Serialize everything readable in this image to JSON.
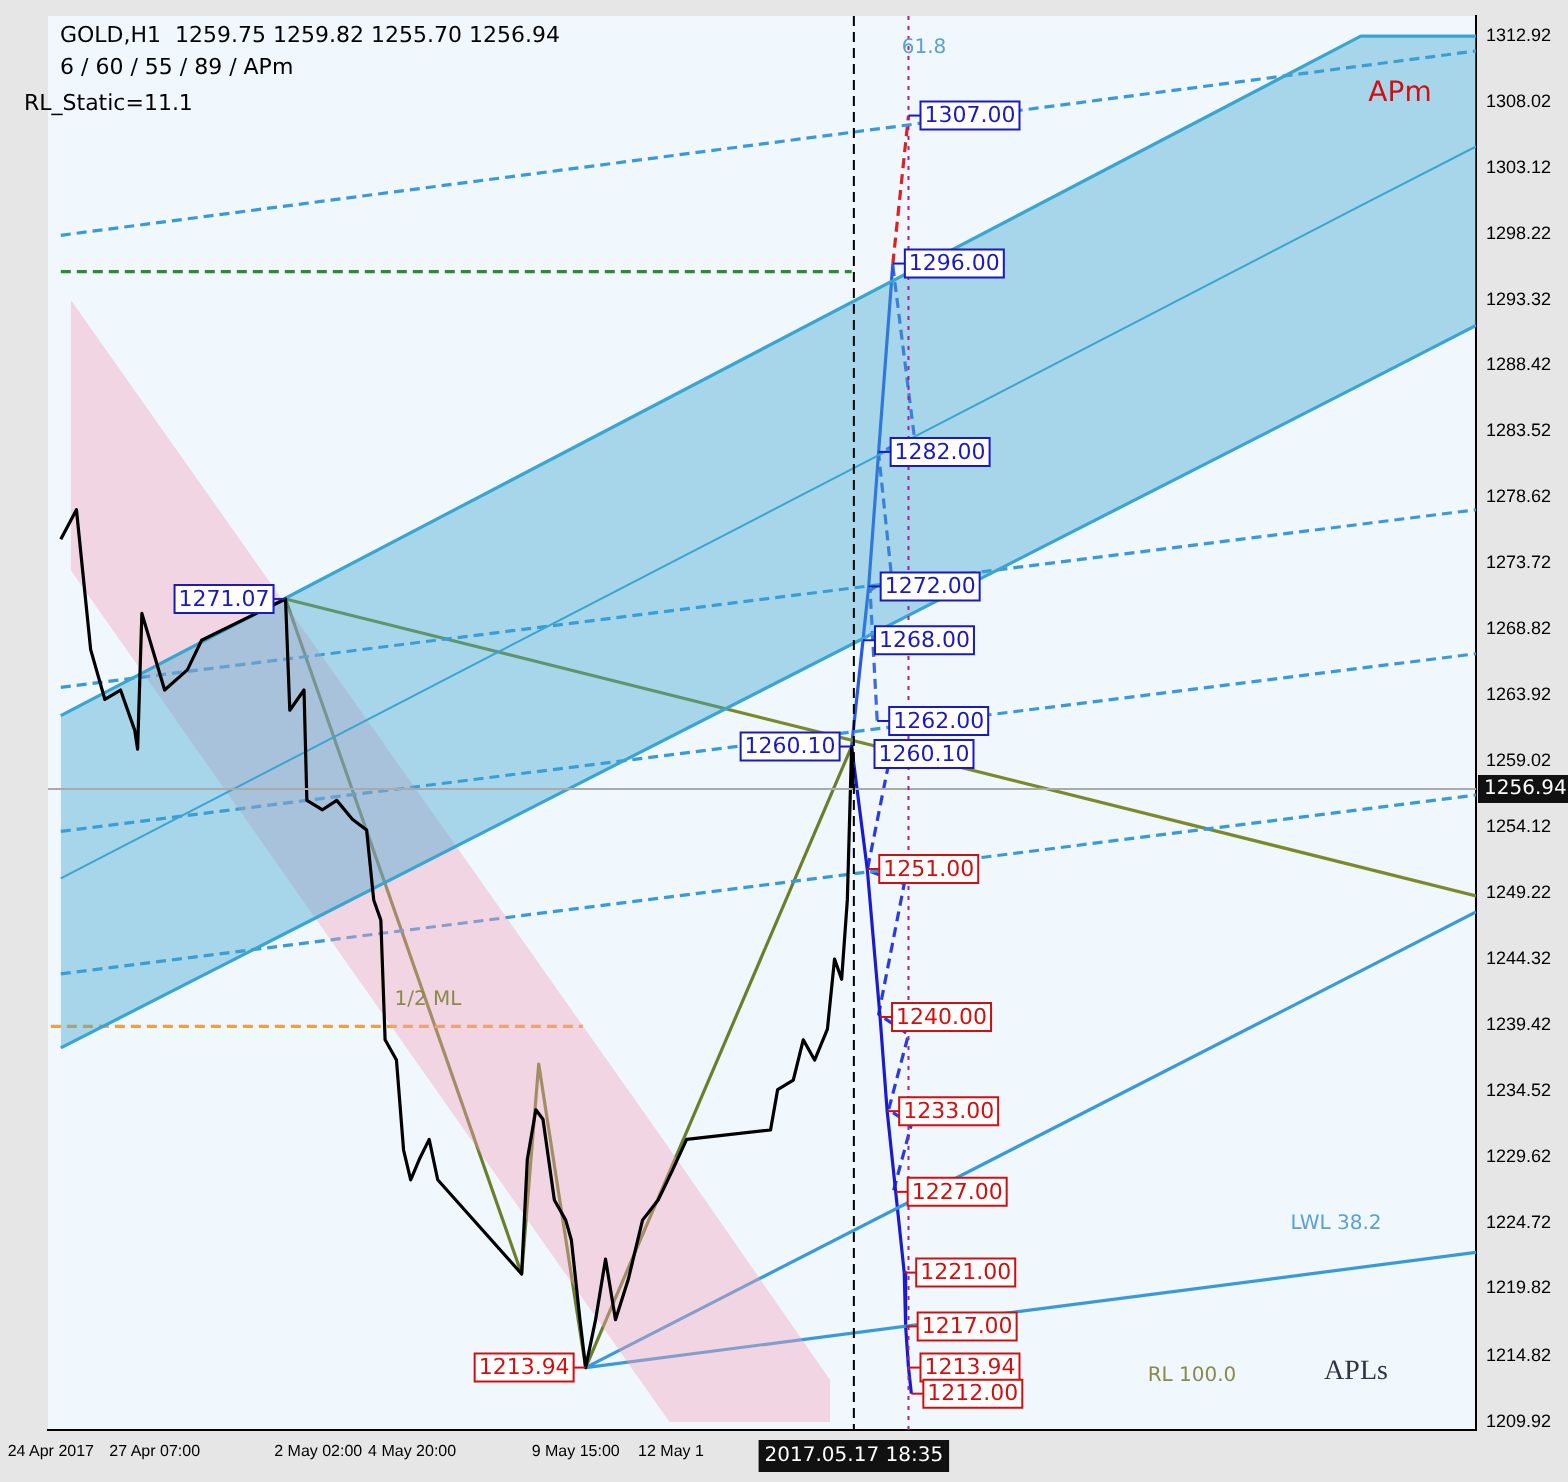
{
  "chart_data": {
    "type": "line",
    "title": "GOLD,H1  1259.75 1259.82 1255.70 1256.94",
    "subtitle": "6 / 60 / 55 / 89 / APm",
    "xlim": [
      "2017-04-24T04:00",
      "2017-06-05T00:00"
    ],
    "ylim": [
      1209.3,
      1314.4
    ],
    "xticks": [
      {
        "value": "2017-04-24T06:00",
        "label": "24 Apr 2017"
      },
      {
        "value": "2017-04-27T07:00",
        "label": "27 Apr 07:00"
      },
      {
        "value": "2017-05-02T02:00",
        "label": "2 May 02:00"
      },
      {
        "value": "2017-05-04T20:00",
        "label": "4 May 20:00"
      },
      {
        "value": "2017-05-09T15:00",
        "label": "9 May 15:00"
      },
      {
        "value": "2017-05-12T10:00",
        "label": "12 May 1"
      }
    ],
    "yticks": [
      1312.92,
      1308.02,
      1303.12,
      1298.22,
      1293.32,
      1288.42,
      1283.52,
      1278.62,
      1273.72,
      1268.82,
      1263.92,
      1259.02,
      1254.12,
      1249.22,
      1244.32,
      1239.42,
      1234.52,
      1229.62,
      1224.72,
      1219.82,
      1214.82,
      1209.92
    ],
    "grid": false,
    "legend": false,
    "marker": "none",
    "series": [
      {
        "color": "#000000",
        "x": [
          "2017-04-24T13:00",
          "2017-04-25T00:00",
          "2017-04-25T10:00",
          "2017-04-25T20:00",
          "2017-04-26T07:00",
          "2017-04-26T17:00",
          "2017-04-26T19:00",
          "2017-04-26T22:00",
          "2017-04-27T14:00",
          "2017-04-28T06:00",
          "2017-04-28T16:00",
          "2017-05-01T03:00",
          "2017-05-01T06:00",
          "2017-05-01T16:00",
          "2017-05-01T18:00",
          "2017-05-02T05:00",
          "2017-05-02T15:00",
          "2017-05-03T02:00",
          "2017-05-03T12:00",
          "2017-05-03T17:00",
          "2017-05-03T22:00",
          "2017-05-04T01:00",
          "2017-05-04T09:00",
          "2017-05-04T14:00",
          "2017-05-04T19:00",
          "2017-05-05T01:00",
          "2017-05-05T08:00",
          "2017-05-05T14:00",
          "2017-05-08T01:00",
          "2017-05-08T05:00",
          "2017-05-08T11:00",
          "2017-05-08T16:00",
          "2017-05-09T00:00",
          "2017-05-09T08:00",
          "2017-05-09T12:00",
          "2017-05-09T18:00",
          "2017-05-09T22:00",
          "2017-05-10T05:00",
          "2017-05-10T12:00",
          "2017-05-10T19:00",
          "2017-05-11T04:00",
          "2017-05-11T14:00",
          "2017-05-12T01:00",
          "2017-05-12T11:00",
          "2017-05-12T21:00",
          "2017-05-15T08:00",
          "2017-05-15T13:00",
          "2017-05-16T00:00",
          "2017-05-16T07:00",
          "2017-05-16T15:00",
          "2017-05-17T00:00",
          "2017-05-17T05:00",
          "2017-05-17T10:00",
          "2017-05-17T14:00",
          "2017-05-17T17:00",
          "2017-05-17T18:00"
        ],
        "values": [
          1275.5,
          1277.7,
          1267.3,
          1263.6,
          1264.3,
          1261.3,
          1259.9,
          1270.0,
          1264.3,
          1265.8,
          1268.0,
          1271.07,
          1262.8,
          1264.3,
          1256.1,
          1255.4,
          1256.1,
          1254.7,
          1253.9,
          1248.7,
          1247.2,
          1238.3,
          1236.8,
          1230.1,
          1227.9,
          1229.4,
          1230.9,
          1227.9,
          1220.9,
          1229.4,
          1233.1,
          1232.4,
          1226.4,
          1224.9,
          1223.4,
          1217.5,
          1213.94,
          1217.5,
          1222.0,
          1217.5,
          1220.5,
          1224.9,
          1226.4,
          1228.6,
          1230.9,
          1231.6,
          1234.6,
          1235.3,
          1238.3,
          1236.8,
          1239.1,
          1244.3,
          1242.8,
          1248.7,
          1260.1,
          1256.94
        ]
      },
      {
        "color": "#3aa6d0",
        "x": [
          "2017-04-24T13:00",
          "2017-06-01T15:00",
          "2017-06-05T00:00"
        ],
        "values": [
          1250.3,
          1300.3,
          1304.7
        ],
        "lower": [
          1237.7,
          1287.0,
          1291.4
        ],
        "upper": [
          1262.4,
          1312.9,
          1312.9
        ]
      },
      {
        "color": "#3aa6d0",
        "x": [
          "2017-04-24T13:00",
          "2017-06-01T15:00",
          "2017-06-05T00:00"
        ],
        "values": [
          1237.7,
          1287.0,
          1291.4
        ]
      },
      {
        "color": "#3aa6d0",
        "x": [
          "2017-04-24T13:00",
          "2017-06-01T15:00",
          "2017-06-05T00:00"
        ],
        "values": [
          1262.4,
          1312.9,
          1312.9
        ]
      },
      {
        "color": "#f4a3bb",
        "x": [
          "2017-04-24T20:00",
          "2017-05-12T09:00",
          "2017-05-17T02:00"
        ],
        "values": [
          null,
          null,
          null
        ],
        "lower": [
          1273.2,
          1209.9,
          1209.9
        ],
        "upper": [
          1293.3,
          1230.2,
          1213.0
        ]
      },
      {
        "color": "#3a9ad9",
        "line_style": "dashed",
        "x": [
          "2017-04-24T13:00",
          "2017-06-05T00:00"
        ],
        "values": [
          1298.1,
          1311.8
        ]
      },
      {
        "color": "#3a9ad9",
        "line_style": "dashed",
        "x": [
          "2017-04-24T13:00",
          "2017-06-05T00:00"
        ],
        "values": [
          1264.5,
          1277.7
        ]
      },
      {
        "color": "#3a9ad9",
        "line_style": "dashed",
        "x": [
          "2017-04-24T13:00",
          "2017-06-05T00:00"
        ],
        "values": [
          1253.8,
          1267.0
        ]
      },
      {
        "color": "#3a9ad9",
        "line_style": "dashed",
        "x": [
          "2017-04-24T13:00",
          "2017-06-05T00:00"
        ],
        "values": [
          1243.2,
          1256.5
        ]
      },
      {
        "color": "#3a9ad9",
        "x": [
          "2017-05-09T22:00",
          "2017-06-05T00:00"
        ],
        "values": [
          1213.94,
          1247.8
        ]
      },
      {
        "color": "#3a9ad9",
        "x": [
          "2017-05-09T22:00",
          "2017-06-05T00:00"
        ],
        "values": [
          1213.94,
          1222.5
        ]
      },
      {
        "color": "#2e8b2e",
        "line_style": "dashed",
        "x": [
          "2017-04-24T13:00",
          "2017-05-17T17:00"
        ],
        "values": [
          1295.4,
          1295.4
        ]
      },
      {
        "color": "#f0a040",
        "line_style": "dashed",
        "x": [
          "2017-04-24T06:00",
          "2017-05-09T20:00"
        ],
        "values": [
          1239.3,
          1239.3
        ]
      },
      {
        "color": "#7a8a2a",
        "x": [
          "2017-05-01T03:00",
          "2017-06-05T00:00"
        ],
        "values": [
          1271.07,
          1249.0
        ]
      },
      {
        "color": "#6b7f2a",
        "x": [
          "2017-05-01T03:00",
          "2017-05-08T01:00",
          "2017-05-08T13:00",
          "2017-05-09T22:00",
          "2017-05-17T17:00"
        ],
        "values": [
          1271.07,
          1220.9,
          1236.5,
          1213.94,
          1260.1
        ]
      },
      {
        "color": "#2a5ae0",
        "x": [
          "2017-05-17T17:00",
          "2017-05-18T01:00",
          "2017-05-18T05:00",
          "2017-05-18T12:00",
          "2017-05-18T22:00"
        ],
        "values": [
          1260.1,
          1268.0,
          1272.0,
          1282.0,
          1296.0
        ]
      },
      {
        "color": "#e02020",
        "line_style": "dashed",
        "x": [
          "2017-05-18T22:00",
          "2017-05-19T09:00"
        ],
        "values": [
          1296.0,
          1307.0
        ]
      },
      {
        "color": "#3a6ae0",
        "line_style": "dashed",
        "x": [
          "2017-05-18T22:00",
          "2017-05-19T13:00",
          "2017-05-18T12:00",
          "2017-05-18T21:00",
          "2017-05-18T06:00",
          "2017-05-18T11:00"
        ],
        "values": [
          1295.8,
          1283.2,
          1281.9,
          1272.8,
          1271.7,
          1262.0
        ]
      },
      {
        "color": "#1a1ad0",
        "x": [
          "2017-05-17T17:00",
          "2017-05-18T04:00",
          "2017-05-18T13:00",
          "2017-05-18T18:00",
          "2017-05-19T00:00",
          "2017-05-19T06:00",
          "2017-05-19T07:00",
          "2017-05-19T09:00",
          "2017-05-19T11:00"
        ],
        "values": [
          1260.1,
          1251.0,
          1240.0,
          1233.0,
          1227.0,
          1221.0,
          1217.0,
          1213.94,
          1212.0
        ]
      },
      {
        "color": "#2a3ae0",
        "line_style": "dashed",
        "x": [
          "2017-05-18T19:00",
          "2017-05-18T04:00",
          "2017-05-19T06:00",
          "2017-05-18T12:00",
          "2017-05-19T09:00",
          "2017-05-18T19:00",
          "2017-05-19T11:00",
          "2017-05-18T22:00"
        ],
        "values": [
          1258.8,
          1250.9,
          1249.9,
          1240.2,
          1238.7,
          1233.1,
          1232.0,
          1226.9
        ]
      }
    ],
    "ref_lines": [
      {
        "axis": "y",
        "value": 1256.94,
        "label": "1256.94",
        "color": "#aaaaaa",
        "line_style": "solid"
      },
      {
        "axis": "x",
        "value": "2017-05-17T18:35",
        "label": "2017.05.17 18:35",
        "color": "#000000",
        "line_style": "dashed"
      },
      {
        "axis": "x",
        "value": "2017-05-19T09:00",
        "label": null,
        "color": "#a020a0",
        "line_style": "dotted"
      }
    ],
    "annotations": [
      "RL_Static=11.1",
      "APm",
      "APLs",
      "1/2 ML",
      "LWL 38.2",
      "RL 100.0",
      "61.8",
      "1260.10",
      {
        "text": "1307.00",
        "x": "2017-05-19T09:00",
        "y": 1307.0
      },
      {
        "text": "1296.00",
        "x": "2017-05-18T22:00",
        "y": 1296.0
      },
      {
        "text": "1282.00",
        "x": "2017-05-18T12:00",
        "y": 1282.0
      },
      {
        "text": "1272.00",
        "x": "2017-05-18T05:00",
        "y": 1272.0
      },
      {
        "text": "1268.00",
        "x": "2017-05-18T01:00",
        "y": 1268.0
      },
      {
        "text": "1262.00",
        "x": "2017-05-18T11:00",
        "y": 1262.0
      },
      {
        "text": "1260.10",
        "x": "2017-05-17T17:00",
        "y": 1260.1
      },
      {
        "text": "1271.07",
        "x": "2017-05-01T03:00",
        "y": 1271.07
      },
      {
        "text": "1251.00",
        "x": "2017-05-18T04:00",
        "y": 1251.0
      },
      {
        "text": "1240.00",
        "x": "2017-05-18T13:00",
        "y": 1240.0
      },
      {
        "text": "1233.00",
        "x": "2017-05-18T18:00",
        "y": 1233.0
      },
      {
        "text": "1227.00",
        "x": "2017-05-19T00:00",
        "y": 1227.0
      },
      {
        "text": "1221.00",
        "x": "2017-05-19T06:00",
        "y": 1221.0
      },
      {
        "text": "1217.00",
        "x": "2017-05-19T07:00",
        "y": 1217.0
      },
      {
        "text": "1213.94",
        "x": "2017-05-19T09:00",
        "y": 1213.94
      },
      {
        "text": "1212.00",
        "x": "2017-05-19T11:00",
        "y": 1212.0
      },
      {
        "text": "1213.94",
        "x": "2017-05-09T22:00",
        "y": 1213.94
      }
    ]
  }
}
